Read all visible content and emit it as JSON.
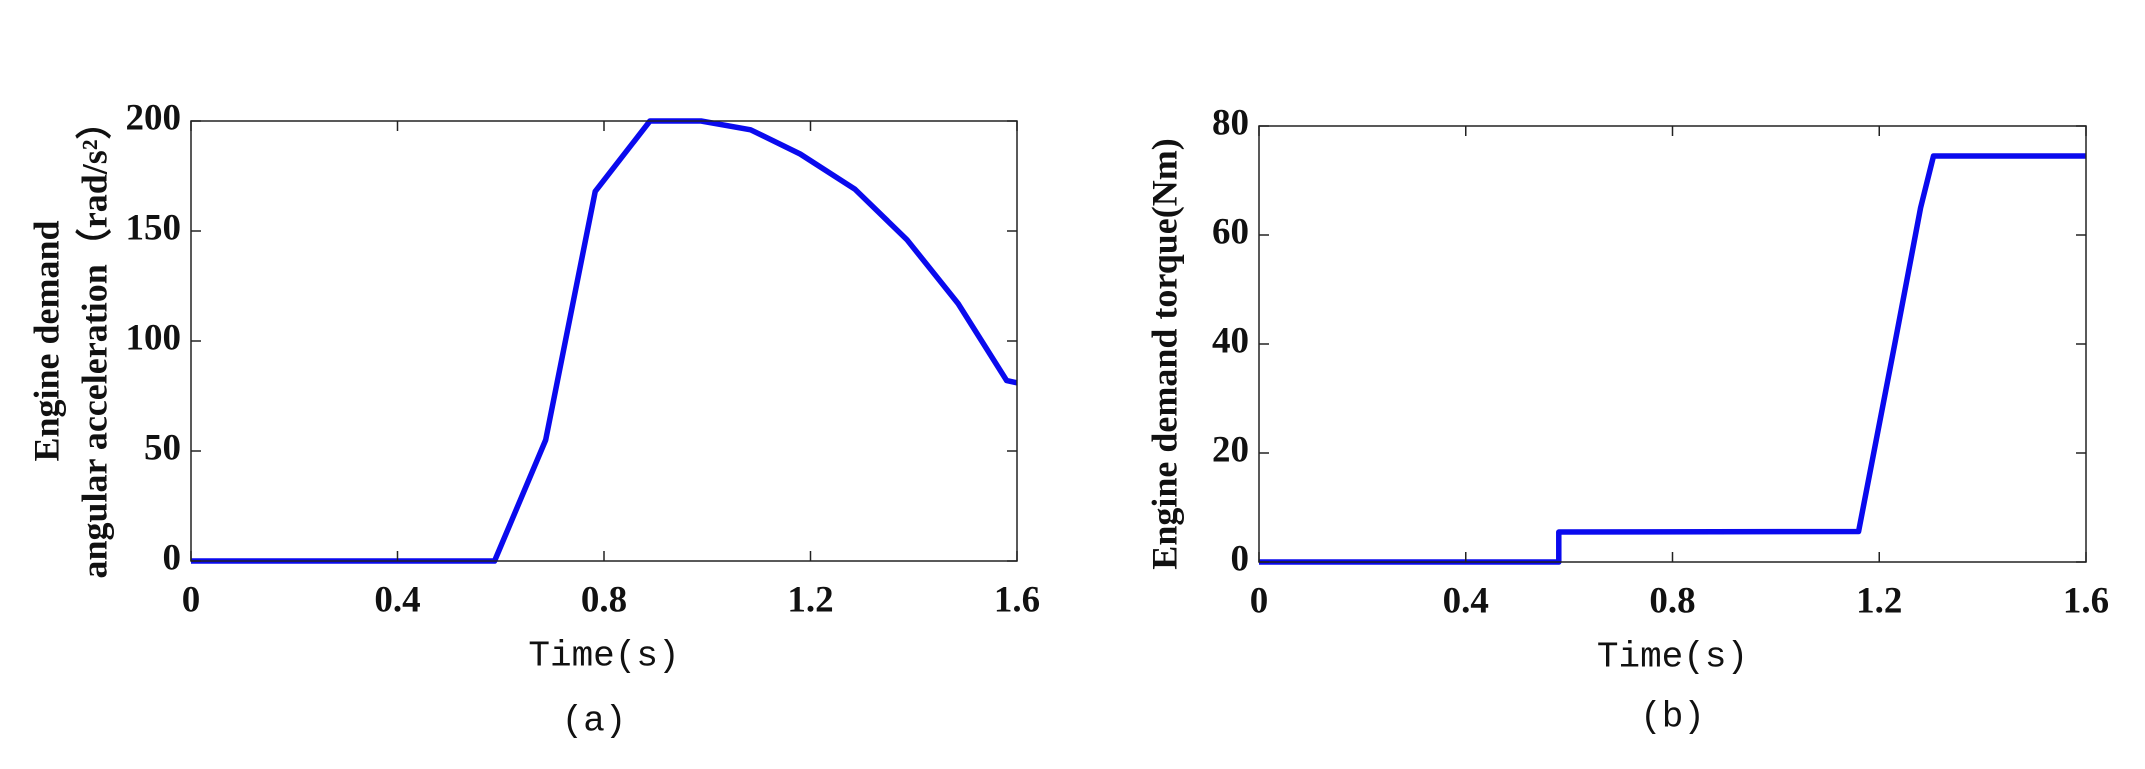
{
  "chart_data": [
    {
      "type": "line",
      "caption": "(a)",
      "xlabel": "Time(s)",
      "ylabel": [
        "Engine demand",
        "angular acceleration（rad/s²）"
      ],
      "x": [
        0,
        0.588,
        0.687,
        0.783,
        0.889,
        0.988,
        1.084,
        1.18,
        1.286,
        1.387,
        1.486,
        1.58,
        1.6
      ],
      "series": [
        {
          "name": "Engine demand angular acceleration",
          "color": "#0a0aee",
          "values": [
            0,
            0,
            55,
            168,
            200,
            200,
            196,
            185,
            169,
            146,
            117,
            82,
            81
          ]
        }
      ],
      "xlim": [
        0,
        1.6
      ],
      "xticks": [
        0,
        0.4,
        0.8,
        1.2,
        1.6
      ],
      "ylim": [
        0,
        200
      ],
      "yticks": [
        0,
        50,
        100,
        150,
        200
      ],
      "grid": false
    },
    {
      "type": "line",
      "caption": "(b)",
      "xlabel": "Time(s)",
      "ylabel": [
        "Engine demand  torque(Nm)"
      ],
      "x": [
        0,
        0.58,
        0.58,
        1.16,
        1.23,
        1.28,
        1.305,
        1.6
      ],
      "series": [
        {
          "name": "Engine demand torque",
          "color": "#0a0aee",
          "values": [
            0,
            0,
            5.5,
            5.6,
            40,
            65,
            74.5,
            74.5
          ]
        }
      ],
      "xlim": [
        0,
        1.6
      ],
      "xticks": [
        0,
        0.4,
        0.8,
        1.2,
        1.6
      ],
      "ylim": [
        0,
        80
      ],
      "yticks": [
        0,
        20,
        40,
        60,
        80
      ],
      "grid": false
    }
  ]
}
